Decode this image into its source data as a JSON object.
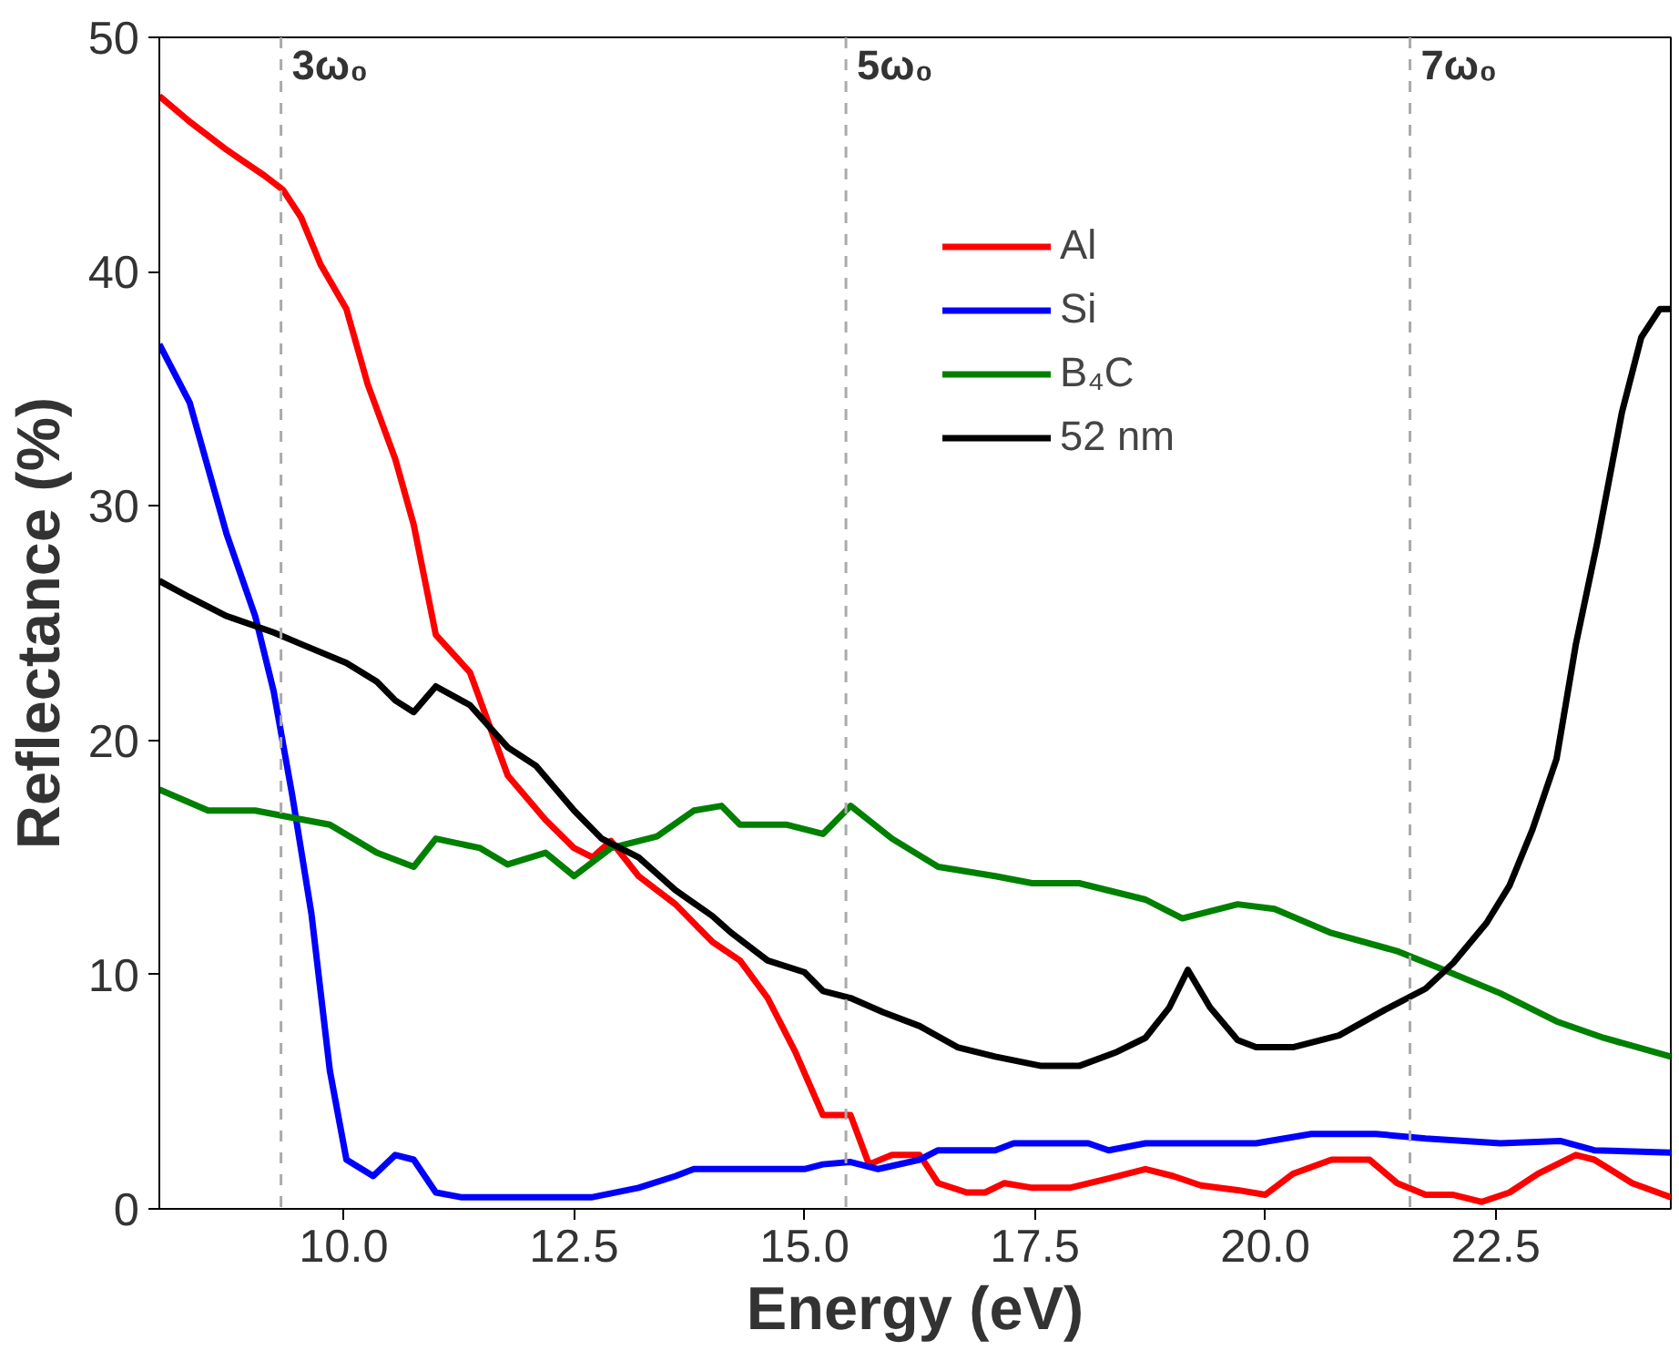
{
  "chart_data": {
    "type": "line",
    "xlabel": "Energy (eV)",
    "ylabel": "Reflectance (%)",
    "xlim": [
      8.0,
      24.4
    ],
    "ylim": [
      0,
      50
    ],
    "xticks": [
      {
        "value": 10,
        "label": "10.0"
      },
      {
        "value": 12.5,
        "label": "12.5"
      },
      {
        "value": 15,
        "label": "15.0"
      },
      {
        "value": 17.5,
        "label": "17.5"
      },
      {
        "value": 20,
        "label": "20.0"
      },
      {
        "value": 22.5,
        "label": "22.5"
      }
    ],
    "yticks": [
      0,
      10,
      20,
      30,
      40,
      50
    ],
    "grid": false,
    "legend": "top right",
    "marker": "none",
    "line_style": "solid",
    "ref_lines": [
      {
        "axis": "x",
        "value": 9.32,
        "label": "3ω₀",
        "color": "#aaaaaa",
        "line_style": "dashed"
      },
      {
        "axis": "x",
        "value": 15.45,
        "label": "5ω₀",
        "color": "#aaaaaa",
        "line_style": "dashed"
      },
      {
        "axis": "x",
        "value": 21.57,
        "label": "7ω₀",
        "color": "#aaaaaa",
        "line_style": "dashed"
      }
    ],
    "series": [
      {
        "name": "Al",
        "color": "#ff0000",
        "x": [
          8.0,
          8.33,
          8.73,
          9.14,
          9.34,
          9.54,
          9.75,
          10.03,
          10.26,
          10.56,
          10.76,
          11.0,
          11.37,
          11.78,
          12.19,
          12.5,
          12.7,
          12.9,
          13.2,
          13.6,
          14.0,
          14.3,
          14.6,
          14.9,
          15.2,
          15.5,
          15.7,
          15.95,
          16.25,
          16.45,
          16.76,
          16.96,
          17.17,
          17.47,
          17.88,
          18.3,
          18.7,
          19.0,
          19.3,
          19.7,
          20.0,
          20.3,
          20.72,
          21.13,
          21.43,
          21.74,
          22.04,
          22.35,
          22.65,
          22.96,
          23.37,
          23.57,
          23.98,
          24.4
        ],
        "values": [
          47.5,
          46.4,
          45.2,
          44.1,
          43.5,
          42.3,
          40.3,
          38.4,
          35.2,
          32.0,
          29.2,
          24.5,
          22.9,
          18.5,
          16.6,
          15.4,
          15.0,
          15.7,
          14.2,
          13.0,
          11.4,
          10.6,
          9.0,
          6.7,
          4.0,
          4.0,
          1.9,
          2.3,
          2.3,
          1.1,
          0.7,
          0.7,
          1.1,
          0.9,
          0.9,
          1.3,
          1.7,
          1.4,
          1.0,
          0.8,
          0.6,
          1.5,
          2.1,
          2.1,
          1.1,
          0.6,
          0.6,
          0.3,
          0.7,
          1.5,
          2.3,
          2.1,
          1.1,
          0.5
        ]
      },
      {
        "name": "Si",
        "color": "#0000ff",
        "x": [
          8.0,
          8.33,
          8.73,
          9.04,
          9.24,
          9.44,
          9.65,
          9.85,
          10.03,
          10.32,
          10.56,
          10.76,
          11.0,
          11.27,
          11.78,
          12.7,
          13.2,
          13.6,
          13.8,
          14.6,
          15.0,
          15.2,
          15.5,
          15.8,
          16.25,
          16.45,
          17.07,
          17.27,
          18.08,
          18.3,
          18.7,
          19.5,
          19.9,
          20.5,
          21.2,
          21.74,
          22.55,
          23.2,
          23.57,
          24.4
        ],
        "values": [
          36.9,
          34.4,
          28.8,
          25.3,
          22.1,
          17.7,
          12.6,
          5.9,
          2.1,
          1.4,
          2.3,
          2.1,
          0.7,
          0.5,
          0.5,
          0.5,
          0.9,
          1.4,
          1.7,
          1.7,
          1.7,
          1.9,
          2.0,
          1.7,
          2.1,
          2.5,
          2.5,
          2.8,
          2.8,
          2.5,
          2.8,
          2.8,
          2.8,
          3.2,
          3.2,
          3.0,
          2.8,
          2.9,
          2.5,
          2.4
        ]
      },
      {
        "name": "B₄C",
        "color": "#008000",
        "x": [
          8.0,
          8.53,
          9.04,
          9.44,
          9.85,
          10.36,
          10.76,
          11.0,
          11.48,
          11.78,
          12.19,
          12.5,
          12.9,
          13.4,
          13.8,
          14.1,
          14.3,
          14.8,
          15.2,
          15.5,
          15.95,
          16.45,
          17.07,
          17.47,
          17.98,
          18.7,
          19.1,
          19.7,
          20.1,
          20.7,
          21.43,
          21.94,
          22.55,
          23.16,
          23.67,
          24.4
        ],
        "values": [
          17.9,
          17.0,
          17.0,
          16.7,
          16.4,
          15.2,
          14.6,
          15.8,
          15.4,
          14.7,
          15.2,
          14.2,
          15.4,
          15.9,
          17.0,
          17.2,
          16.4,
          16.4,
          16.0,
          17.2,
          15.8,
          14.6,
          14.2,
          13.9,
          13.9,
          13.2,
          12.4,
          13.0,
          12.8,
          11.8,
          11.0,
          10.2,
          9.2,
          8.0,
          7.3,
          6.5
        ]
      },
      {
        "name": "52 nm",
        "color": "#000000",
        "x": [
          8.0,
          8.33,
          8.73,
          9.24,
          9.54,
          10.03,
          10.36,
          10.56,
          10.76,
          11.0,
          11.37,
          11.78,
          12.09,
          12.5,
          12.8,
          13.2,
          13.6,
          14.0,
          14.2,
          14.6,
          15.0,
          15.2,
          15.5,
          15.85,
          16.25,
          16.66,
          17.07,
          17.57,
          17.98,
          18.39,
          18.7,
          18.96,
          19.16,
          19.4,
          19.7,
          19.9,
          20.3,
          20.8,
          21.3,
          21.74,
          22.04,
          22.4,
          22.65,
          22.9,
          23.16,
          23.37,
          23.6,
          23.87,
          24.08,
          24.28,
          24.4
        ],
        "values": [
          26.8,
          26.1,
          25.3,
          24.6,
          24.1,
          23.3,
          22.5,
          21.7,
          21.2,
          22.3,
          21.5,
          19.7,
          18.9,
          17.0,
          15.8,
          15.0,
          13.6,
          12.5,
          11.8,
          10.6,
          10.1,
          9.3,
          9.0,
          8.4,
          7.8,
          6.9,
          6.5,
          6.1,
          6.1,
          6.7,
          7.3,
          8.6,
          10.2,
          8.6,
          7.2,
          6.9,
          6.9,
          7.4,
          8.5,
          9.4,
          10.5,
          12.2,
          13.8,
          16.2,
          19.2,
          24.1,
          28.4,
          34.0,
          37.2,
          38.4,
          38.4
        ]
      }
    ]
  }
}
